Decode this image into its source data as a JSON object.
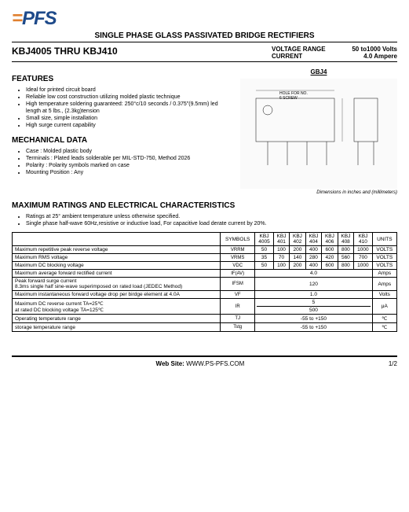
{
  "logo": {
    "text": "PFS",
    "accent": "="
  },
  "subtitle": "SINGLE PHASE GLASS PASSIVATED BRIDGE RECTIFIERS",
  "part_title": "KBJ4005 THRU  KBJ410",
  "specs": {
    "voltage_label": "VOLTAGE RANGE",
    "voltage_val": "50 to1000 Volts",
    "current_label": "CURRENT",
    "current_val": "4.0 Ampere"
  },
  "features": {
    "title": "FEATURES",
    "items": [
      "Ideal for printed circuit board",
      "Reliable low cost construction utilizing molded plastic technique",
      "High temperature soldering guaranteed: 250°c/10 seconds / 0.375\"(9.5mm) led length at 5 lbs., (2.3kg)tension",
      "Small size, simple installation",
      "High surge current capability"
    ]
  },
  "mech": {
    "title": "MECHANICAL DATA",
    "items": [
      "Case : Molded plastic body",
      "Terminals : Plated leads solderable per MIL-STD-750, Method 2026",
      "Polarity : Polarity symbols marked on case",
      "Mounting Position  : Any"
    ]
  },
  "package": {
    "label": "GBJ4",
    "dim_note": "Dimensions in inches and (millimeters)"
  },
  "ratings": {
    "title": "MAXIMUM RATINGS AND ELECTRICAL CHARACTERISTICS",
    "notes": [
      "Ratings at 25° ambient temperature unless otherwise specified.",
      "Single phase half-wave 60Hz,resistive or inductive load, For capacitive load derate current by 20%."
    ],
    "columns": [
      "SYMBOLS",
      "KBJ 4005",
      "KBJ 401",
      "KBJ 402",
      "KBJ 404",
      "KBJ 406",
      "KBJ 408",
      "KBJ 410",
      "UNITS"
    ],
    "rows": [
      {
        "label": "Maximum repetitive peak reverse voltage",
        "sym": "VRRM",
        "vals": [
          "50",
          "100",
          "200",
          "400",
          "600",
          "800",
          "1000"
        ],
        "unit": "VOLTS"
      },
      {
        "label": "Maximum RMS voltage",
        "sym": "VRMS",
        "vals": [
          "35",
          "70",
          "140",
          "280",
          "420",
          "560",
          "700"
        ],
        "unit": "VOLTS"
      },
      {
        "label": "Maximum DC blocking voltage",
        "sym": "VDC",
        "vals": [
          "50",
          "100",
          "200",
          "400",
          "600",
          "800",
          "1000"
        ],
        "unit": "VOLTS"
      },
      {
        "label": "Maximum average forward rectified current",
        "sym": "IF(AV)",
        "span": "4.0",
        "unit": "Amps"
      },
      {
        "label": "Peak forward surge current\n8.3ms single half sine-wave superimposed on rated load (JEDEC Method)",
        "sym": "IFSM",
        "span": "120",
        "unit": "Amps"
      },
      {
        "label": "Maximum instantaneous forward voltage drop per birdge element at 4.0A",
        "sym": "VF",
        "span": "1.0",
        "unit": "Volts"
      },
      {
        "label": "Maximum DC reverse current     TA=25℃\nat rated DC blocking voltage    TA=125℃",
        "sym": "IR",
        "span2": [
          "5",
          "500"
        ],
        "unit": "μA"
      },
      {
        "label": "Operating temperature range",
        "sym": "TJ",
        "span": "-55 to +150",
        "unit": "℃"
      },
      {
        "label": "storage temperature range",
        "sym": "Tstg",
        "span": "-55 to +150",
        "unit": "℃"
      }
    ]
  },
  "footer": {
    "site_label": "Web Site:",
    "site": "WWW.PS-PFS.COM",
    "page": "1/2"
  }
}
